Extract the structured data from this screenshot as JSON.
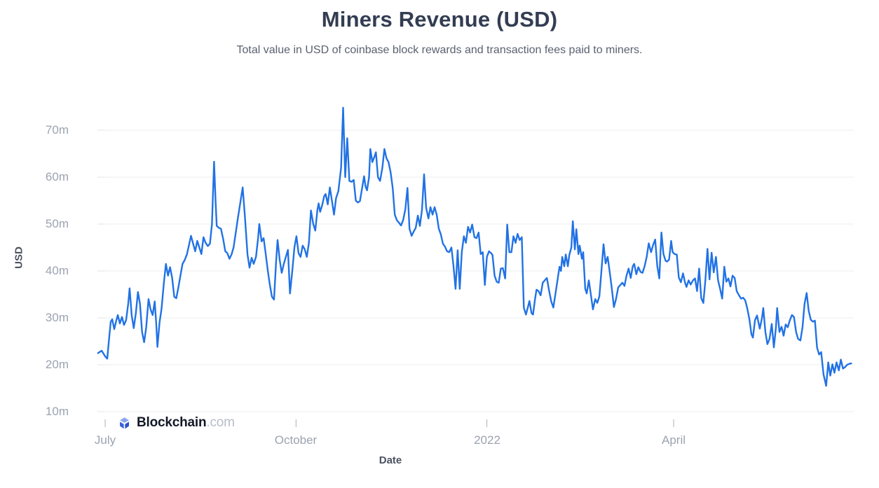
{
  "page": {
    "background": "#ffffff"
  },
  "header": {
    "title": "Miners Revenue (USD)",
    "subtitle": "Total value in USD of coinbase block rewards and transaction fees paid to miners."
  },
  "watermark": {
    "brand": "Blockchain",
    "suffix": ".com",
    "icon": "blockchain-cube-logo"
  },
  "chart_data": {
    "type": "line",
    "title": "Miners Revenue (USD)",
    "xlabel": "Date",
    "ylabel": "USD",
    "series_name": "Miners Revenue (USD)",
    "line_color": "#2172E5",
    "grid": true,
    "legend": false,
    "x_axis": {
      "unit": "days since 2021-07-01",
      "start_date": "2021-06-28",
      "end_date": "2022-06-26",
      "ticks": [
        {
          "label": "July",
          "day": 0
        },
        {
          "label": "October",
          "day": 92
        },
        {
          "label": "2022",
          "day": 184
        },
        {
          "label": "April",
          "day": 274
        }
      ]
    },
    "y_axis": {
      "unit": "millions USD",
      "range_millions": [
        10,
        76
      ],
      "ticks": [
        {
          "label": "10m",
          "value": 10
        },
        {
          "label": "20m",
          "value": 20
        },
        {
          "label": "30m",
          "value": 30
        },
        {
          "label": "40m",
          "value": 40
        },
        {
          "label": "50m",
          "value": 50
        },
        {
          "label": "60m",
          "value": 60
        },
        {
          "label": "70m",
          "value": 70
        }
      ]
    },
    "points": [
      [
        -3.4,
        22.5
      ],
      [
        -1.7,
        23.0
      ],
      [
        0,
        21.8
      ],
      [
        1,
        21.3
      ],
      [
        2,
        26.0
      ],
      [
        2.7,
        29.2
      ],
      [
        3.4,
        29.7
      ],
      [
        4.4,
        27.6
      ],
      [
        5.4,
        29.5
      ],
      [
        6.1,
        30.6
      ],
      [
        7.1,
        28.8
      ],
      [
        8.1,
        30.2
      ],
      [
        9.1,
        28.5
      ],
      [
        10.1,
        29.5
      ],
      [
        11.1,
        33.0
      ],
      [
        11.8,
        36.3
      ],
      [
        12.8,
        30.5
      ],
      [
        13.8,
        27.8
      ],
      [
        14.8,
        31.0
      ],
      [
        15.8,
        35.5
      ],
      [
        16.8,
        33.0
      ],
      [
        17.8,
        27.0
      ],
      [
        18.8,
        24.8
      ],
      [
        19.8,
        28.0
      ],
      [
        20.9,
        34.0
      ],
      [
        21.9,
        31.8
      ],
      [
        22.9,
        30.6
      ],
      [
        23.9,
        33.5
      ],
      [
        24.6,
        29.0
      ],
      [
        25.2,
        23.8
      ],
      [
        26.2,
        29.0
      ],
      [
        27.2,
        32.0
      ],
      [
        28.3,
        37.5
      ],
      [
        29.3,
        41.5
      ],
      [
        30.3,
        39.0
      ],
      [
        31.3,
        40.8
      ],
      [
        32.3,
        38.5
      ],
      [
        33.3,
        34.5
      ],
      [
        34.3,
        34.2
      ],
      [
        35.3,
        36.5
      ],
      [
        36.3,
        39.0
      ],
      [
        37.3,
        41.5
      ],
      [
        38.3,
        42.3
      ],
      [
        39.4,
        43.5
      ],
      [
        40.4,
        45.5
      ],
      [
        41.4,
        47.5
      ],
      [
        42.4,
        45.8
      ],
      [
        43.4,
        44.2
      ],
      [
        44.4,
        46.4
      ],
      [
        45.4,
        45.0
      ],
      [
        46.4,
        43.6
      ],
      [
        47.4,
        47.2
      ],
      [
        48.4,
        46.0
      ],
      [
        49.5,
        45.3
      ],
      [
        50.5,
        45.8
      ],
      [
        51.5,
        50.0
      ],
      [
        52.5,
        63.3
      ],
      [
        53.2,
        55.0
      ],
      [
        53.8,
        49.6
      ],
      [
        54.8,
        49.2
      ],
      [
        55.8,
        49.0
      ],
      [
        56.9,
        46.8
      ],
      [
        57.9,
        44.2
      ],
      [
        58.9,
        43.8
      ],
      [
        59.9,
        42.6
      ],
      [
        60.9,
        43.5
      ],
      [
        61.9,
        45.0
      ],
      [
        62.9,
        48.0
      ],
      [
        63.9,
        51.0
      ],
      [
        65.3,
        55.0
      ],
      [
        66.3,
        57.8
      ],
      [
        67.3,
        52.0
      ],
      [
        68.6,
        43.5
      ],
      [
        69.6,
        40.7
      ],
      [
        70.6,
        42.8
      ],
      [
        71.6,
        41.5
      ],
      [
        72.7,
        43.0
      ],
      [
        73.7,
        47.0
      ],
      [
        74.3,
        50.0
      ],
      [
        75.4,
        46.3
      ],
      [
        76.4,
        47.0
      ],
      [
        77.4,
        43.6
      ],
      [
        78.4,
        40.0
      ],
      [
        79.4,
        37.0
      ],
      [
        80.4,
        34.5
      ],
      [
        81.4,
        33.9
      ],
      [
        82.4,
        42.0
      ],
      [
        83.1,
        46.6
      ],
      [
        84.1,
        42.5
      ],
      [
        85.1,
        39.6
      ],
      [
        86.1,
        41.5
      ],
      [
        87.1,
        43.0
      ],
      [
        88.1,
        44.5
      ],
      [
        89.1,
        35.2
      ],
      [
        90.2,
        40.0
      ],
      [
        91.2,
        45.0
      ],
      [
        92.2,
        47.4
      ],
      [
        93.2,
        43.8
      ],
      [
        94.2,
        43.0
      ],
      [
        95.2,
        45.4
      ],
      [
        96.2,
        44.6
      ],
      [
        97.2,
        43.0
      ],
      [
        98.2,
        46.0
      ],
      [
        99.2,
        52.9
      ],
      [
        100.3,
        50.0
      ],
      [
        101.3,
        48.6
      ],
      [
        102.3,
        53.0
      ],
      [
        102.9,
        54.4
      ],
      [
        103.6,
        52.6
      ],
      [
        104.6,
        54.0
      ],
      [
        105.6,
        56.0
      ],
      [
        106.3,
        56.4
      ],
      [
        107.3,
        54.2
      ],
      [
        108.3,
        57.8
      ],
      [
        109.3,
        55.0
      ],
      [
        110.3,
        52.0
      ],
      [
        111.3,
        55.5
      ],
      [
        112.4,
        57.0
      ],
      [
        113.7,
        62.0
      ],
      [
        114.7,
        74.8
      ],
      [
        115.7,
        60.0
      ],
      [
        116.7,
        68.3
      ],
      [
        117.7,
        59.2
      ],
      [
        118.8,
        59.0
      ],
      [
        119.8,
        59.4
      ],
      [
        120.8,
        55.0
      ],
      [
        121.8,
        54.6
      ],
      [
        122.8,
        54.9
      ],
      [
        123.8,
        57.5
      ],
      [
        124.8,
        60.2
      ],
      [
        125.5,
        58.0
      ],
      [
        126.2,
        57.2
      ],
      [
        127.2,
        60.0
      ],
      [
        127.8,
        66.0
      ],
      [
        128.8,
        63.2
      ],
      [
        129.9,
        64.5
      ],
      [
        130.5,
        65.3
      ],
      [
        131.5,
        60.0
      ],
      [
        132.5,
        59.2
      ],
      [
        133.6,
        62.0
      ],
      [
        134.6,
        66.0
      ],
      [
        135.6,
        64.0
      ],
      [
        136.6,
        63.2
      ],
      [
        137.6,
        61.0
      ],
      [
        138.6,
        57.6
      ],
      [
        139.6,
        52.0
      ],
      [
        140.6,
        50.8
      ],
      [
        141.6,
        50.3
      ],
      [
        142.6,
        49.7
      ],
      [
        143.6,
        50.8
      ],
      [
        144.7,
        53.2
      ],
      [
        145.7,
        57.7
      ],
      [
        146.7,
        49.0
      ],
      [
        147.7,
        47.5
      ],
      [
        148.7,
        48.4
      ],
      [
        149.7,
        49.2
      ],
      [
        150.7,
        51.8
      ],
      [
        151.7,
        49.6
      ],
      [
        152.7,
        53.0
      ],
      [
        153.7,
        60.6
      ],
      [
        154.7,
        53.5
      ],
      [
        155.8,
        51.2
      ],
      [
        156.8,
        53.6
      ],
      [
        157.8,
        52.0
      ],
      [
        158.8,
        53.6
      ],
      [
        159.8,
        52.0
      ],
      [
        160.8,
        49.0
      ],
      [
        161.8,
        47.8
      ],
      [
        162.8,
        45.8
      ],
      [
        163.8,
        45.2
      ],
      [
        164.8,
        44.2
      ],
      [
        165.8,
        44.0
      ],
      [
        166.9,
        45.0
      ],
      [
        167.9,
        41.0
      ],
      [
        168.9,
        36.2
      ],
      [
        169.9,
        44.4
      ],
      [
        170.9,
        36.2
      ],
      [
        171.9,
        44.0
      ],
      [
        172.9,
        47.4
      ],
      [
        173.9,
        46.0
      ],
      [
        174.9,
        49.4
      ],
      [
        175.9,
        48.2
      ],
      [
        176.9,
        49.9
      ],
      [
        178,
        47.2
      ],
      [
        179,
        47.0
      ],
      [
        180,
        48.2
      ],
      [
        181,
        43.6
      ],
      [
        182,
        44.0
      ],
      [
        183,
        37.0
      ],
      [
        184,
        43.0
      ],
      [
        185,
        44.2
      ],
      [
        186,
        43.8
      ],
      [
        186.7,
        43.4
      ],
      [
        187.7,
        39.0
      ],
      [
        188.7,
        37.7
      ],
      [
        189.7,
        37.5
      ],
      [
        190.7,
        40.5
      ],
      [
        191.7,
        40.6
      ],
      [
        192.8,
        38.4
      ],
      [
        193.8,
        49.9
      ],
      [
        194.8,
        44.0
      ],
      [
        195.8,
        44.0
      ],
      [
        196.8,
        47.4
      ],
      [
        197.8,
        46.0
      ],
      [
        198.8,
        47.9
      ],
      [
        199.8,
        46.6
      ],
      [
        200.8,
        47.2
      ],
      [
        201.8,
        32.2
      ],
      [
        202.8,
        30.7
      ],
      [
        203.9,
        32.5
      ],
      [
        204.5,
        33.6
      ],
      [
        205.5,
        31.0
      ],
      [
        206.2,
        30.7
      ],
      [
        207.2,
        34.0
      ],
      [
        207.9,
        36.0
      ],
      [
        208.9,
        35.7
      ],
      [
        209.9,
        34.8
      ],
      [
        210.9,
        37.5
      ],
      [
        211.9,
        38.0
      ],
      [
        212.9,
        38.5
      ],
      [
        213.9,
        36.0
      ],
      [
        215,
        33.5
      ],
      [
        216,
        32.2
      ],
      [
        217,
        35.0
      ],
      [
        218,
        38.0
      ],
      [
        219,
        40.9
      ],
      [
        219.7,
        40.0
      ],
      [
        220.3,
        43.0
      ],
      [
        221.3,
        41.0
      ],
      [
        222,
        43.5
      ],
      [
        223,
        41.0
      ],
      [
        223.7,
        43.4
      ],
      [
        224.7,
        45.0
      ],
      [
        225.4,
        50.6
      ],
      [
        226.4,
        44.6
      ],
      [
        227.1,
        48.9
      ],
      [
        228.1,
        43.6
      ],
      [
        228.7,
        45.4
      ],
      [
        229.8,
        42.6
      ],
      [
        230.4,
        44.0
      ],
      [
        231.4,
        36.2
      ],
      [
        232.1,
        35.2
      ],
      [
        233.1,
        38.0
      ],
      [
        234.1,
        35.0
      ],
      [
        235.1,
        31.8
      ],
      [
        236.2,
        34.0
      ],
      [
        237.2,
        33.2
      ],
      [
        238.2,
        34.6
      ],
      [
        239.2,
        40.0
      ],
      [
        240.2,
        45.7
      ],
      [
        241.2,
        41.6
      ],
      [
        242.2,
        43.0
      ],
      [
        243.2,
        39.7
      ],
      [
        244.2,
        36.3
      ],
      [
        245.2,
        32.3
      ],
      [
        246.2,
        34.0
      ],
      [
        247.3,
        36.5
      ],
      [
        248.3,
        37.0
      ],
      [
        249.3,
        37.5
      ],
      [
        250.3,
        36.8
      ],
      [
        251.3,
        39.0
      ],
      [
        252.3,
        40.5
      ],
      [
        253.3,
        38.5
      ],
      [
        254.3,
        41.0
      ],
      [
        255,
        41.5
      ],
      [
        256,
        39.3
      ],
      [
        257,
        40.8
      ],
      [
        258,
        39.8
      ],
      [
        259,
        39.6
      ],
      [
        260,
        41.0
      ],
      [
        261,
        43.0
      ],
      [
        262,
        45.9
      ],
      [
        263.1,
        44.0
      ],
      [
        264.1,
        45.5
      ],
      [
        265.1,
        46.7
      ],
      [
        266.1,
        41.0
      ],
      [
        267.1,
        38.4
      ],
      [
        268.1,
        48.2
      ],
      [
        269.1,
        43.6
      ],
      [
        270.1,
        42.2
      ],
      [
        270.8,
        42.0
      ],
      [
        271.8,
        42.4
      ],
      [
        272.8,
        46.4
      ],
      [
        273.5,
        44.0
      ],
      [
        274.5,
        43.6
      ],
      [
        275.5,
        43.5
      ],
      [
        276.5,
        38.6
      ],
      [
        277.5,
        37.6
      ],
      [
        278.5,
        39.5
      ],
      [
        279.5,
        37.5
      ],
      [
        280.2,
        36.6
      ],
      [
        281.2,
        38.0
      ],
      [
        282.2,
        37.1
      ],
      [
        283.3,
        38.0
      ],
      [
        284.3,
        38.4
      ],
      [
        285.3,
        35.7
      ],
      [
        286.3,
        40.5
      ],
      [
        287.3,
        34.2
      ],
      [
        288.3,
        33.2
      ],
      [
        289.3,
        38.0
      ],
      [
        290.3,
        44.7
      ],
      [
        291.3,
        38.2
      ],
      [
        292.3,
        43.9
      ],
      [
        293.3,
        39.7
      ],
      [
        294.4,
        43.0
      ],
      [
        295.4,
        38.0
      ],
      [
        296.4,
        36.2
      ],
      [
        297.4,
        34.1
      ],
      [
        298.4,
        40.9
      ],
      [
        299.4,
        37.7
      ],
      [
        300.4,
        38.4
      ],
      [
        301.4,
        36.7
      ],
      [
        302.4,
        39.0
      ],
      [
        303.4,
        38.5
      ],
      [
        304.4,
        35.7
      ],
      [
        305.5,
        34.8
      ],
      [
        306.5,
        34.1
      ],
      [
        307.5,
        34.3
      ],
      [
        308.5,
        33.7
      ],
      [
        309.5,
        32.0
      ],
      [
        310.5,
        29.7
      ],
      [
        311.5,
        26.5
      ],
      [
        312.2,
        25.8
      ],
      [
        313.2,
        29.5
      ],
      [
        314.2,
        30.5
      ],
      [
        314.9,
        29.0
      ],
      [
        315.5,
        27.7
      ],
      [
        316.6,
        30.0
      ],
      [
        317.2,
        32.1
      ],
      [
        318.2,
        27.0
      ],
      [
        319.2,
        24.4
      ],
      [
        320.2,
        25.5
      ],
      [
        321.3,
        28.7
      ],
      [
        322.3,
        23.7
      ],
      [
        323.3,
        28.0
      ],
      [
        323.9,
        32.1
      ],
      [
        325,
        27.0
      ],
      [
        326,
        28.1
      ],
      [
        327,
        26.2
      ],
      [
        328,
        28.6
      ],
      [
        329,
        28.0
      ],
      [
        330,
        29.5
      ],
      [
        331,
        30.6
      ],
      [
        332,
        30.2
      ],
      [
        333,
        27.0
      ],
      [
        334,
        25.5
      ],
      [
        335.1,
        25.2
      ],
      [
        336.1,
        28.0
      ],
      [
        337.1,
        33.0
      ],
      [
        338.1,
        35.3
      ],
      [
        339.1,
        31.5
      ],
      [
        340.1,
        29.6
      ],
      [
        341.1,
        29.2
      ],
      [
        342.1,
        29.4
      ],
      [
        343.1,
        23.7
      ],
      [
        344.1,
        22.2
      ],
      [
        345.1,
        22.7
      ],
      [
        346.2,
        18.0
      ],
      [
        347.5,
        15.5
      ],
      [
        348.5,
        20.5
      ],
      [
        349.5,
        17.7
      ],
      [
        350.5,
        20.1
      ],
      [
        351.5,
        18.3
      ],
      [
        352.5,
        20.5
      ],
      [
        353.6,
        18.8
      ],
      [
        354.6,
        21.1
      ],
      [
        355.6,
        19.2
      ],
      [
        356.6,
        19.5
      ],
      [
        357.6,
        20.0
      ],
      [
        358.6,
        20.2
      ],
      [
        359.6,
        20.3
      ]
    ]
  }
}
